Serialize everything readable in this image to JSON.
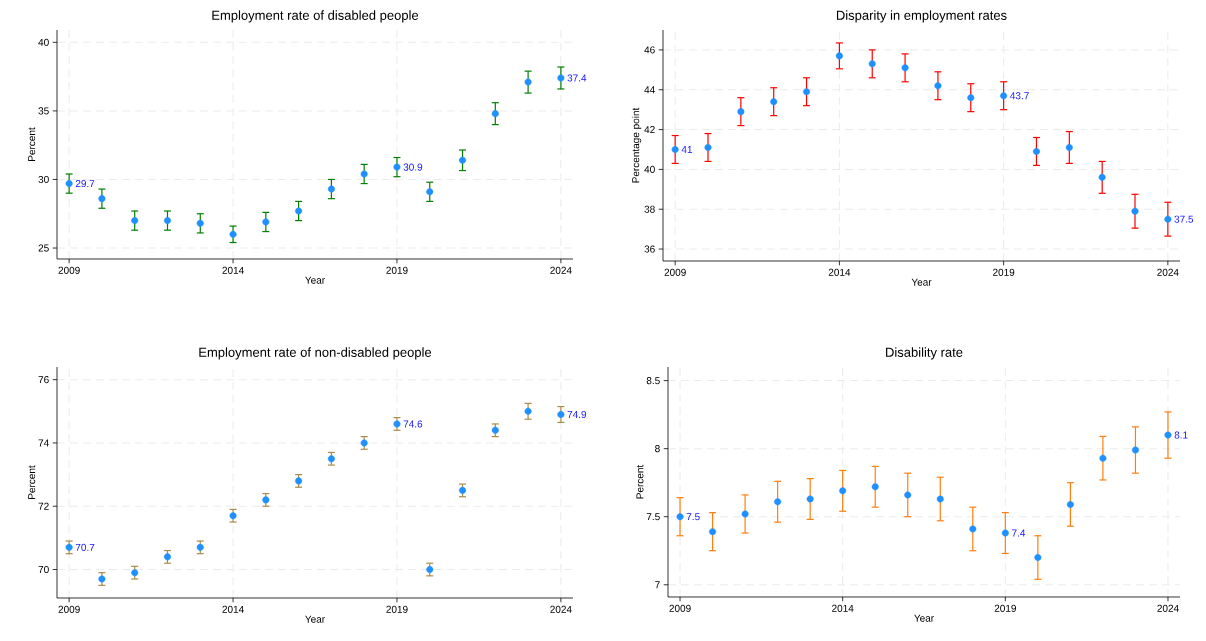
{
  "chart_data": [
    {
      "type": "scatter",
      "title": "Employment rate of disabled people",
      "xlabel": "Year",
      "ylabel": "Percent",
      "x": [
        2009,
        2010,
        2011,
        2012,
        2013,
        2014,
        2015,
        2016,
        2017,
        2018,
        2019,
        2020,
        2021,
        2022,
        2023,
        2024
      ],
      "xlim": [
        2008.63,
        2024.37
      ],
      "xticks": [
        2009,
        2014,
        2019,
        2024
      ],
      "ylim": [
        24.2,
        40.9
      ],
      "yticks": [
        25,
        30,
        35,
        40
      ],
      "grid": true,
      "marker": "circle",
      "series": [
        {
          "color": "#1e90ff",
          "values": [
            29.7,
            28.6,
            27.0,
            27.0,
            26.8,
            26.0,
            26.9,
            27.7,
            29.3,
            30.4,
            30.9,
            29.1,
            31.4,
            34.8,
            37.1,
            37.4
          ],
          "errors": [
            0.7,
            0.7,
            0.7,
            0.7,
            0.7,
            0.6,
            0.7,
            0.7,
            0.7,
            0.7,
            0.7,
            0.7,
            0.75,
            0.8,
            0.8,
            0.8
          ],
          "value_labels": [
            "29.7",
            null,
            null,
            null,
            null,
            null,
            null,
            null,
            null,
            null,
            "30.9",
            null,
            null,
            null,
            null,
            "37.4"
          ]
        }
      ]
    },
    {
      "type": "scatter",
      "title": "Disparity in employment rates",
      "xlabel": "Year",
      "ylabel": "Percentage point",
      "x": [
        2009,
        2010,
        2011,
        2012,
        2013,
        2014,
        2015,
        2016,
        2017,
        2018,
        2019,
        2020,
        2021,
        2022,
        2023,
        2024
      ],
      "xlim": [
        2008.63,
        2024.37
      ],
      "xticks": [
        2009,
        2014,
        2019,
        2024
      ],
      "ylim": [
        35.4,
        47
      ],
      "yticks": [
        36,
        38,
        40,
        42,
        44,
        46
      ],
      "grid": true,
      "marker": "circle",
      "series": [
        {
          "color": "#1e90ff",
          "values": [
            41.0,
            41.1,
            42.9,
            43.4,
            43.9,
            45.7,
            45.3,
            45.1,
            44.2,
            43.6,
            43.7,
            40.9,
            41.1,
            39.6,
            37.9,
            37.5
          ],
          "errors": [
            0.7,
            0.7,
            0.7,
            0.7,
            0.7,
            0.65,
            0.7,
            0.7,
            0.7,
            0.7,
            0.7,
            0.7,
            0.8,
            0.8,
            0.85,
            0.85
          ],
          "value_labels": [
            "41",
            null,
            null,
            null,
            null,
            null,
            null,
            null,
            null,
            null,
            "43.7",
            null,
            null,
            null,
            null,
            "37.5"
          ]
        }
      ]
    },
    {
      "type": "scatter",
      "title": "Employment rate of non-disabled people",
      "xlabel": "Year",
      "ylabel": "Percent",
      "x": [
        2009,
        2010,
        2011,
        2012,
        2013,
        2014,
        2015,
        2016,
        2017,
        2018,
        2019,
        2020,
        2021,
        2022,
        2023,
        2024
      ],
      "xlim": [
        2008.63,
        2024.37
      ],
      "xticks": [
        2009,
        2014,
        2019,
        2024
      ],
      "ylim": [
        69.1,
        76.4
      ],
      "yticks": [
        70,
        72,
        74,
        76
      ],
      "grid": true,
      "marker": "circle",
      "series": [
        {
          "color": "#1e90ff",
          "values": [
            70.7,
            69.7,
            69.9,
            70.4,
            70.7,
            71.7,
            72.2,
            72.8,
            73.5,
            74.0,
            74.6,
            70.0,
            72.5,
            74.4,
            75.0,
            74.9
          ],
          "errors": [
            0.2,
            0.2,
            0.2,
            0.2,
            0.2,
            0.2,
            0.2,
            0.2,
            0.2,
            0.2,
            0.2,
            0.2,
            0.2,
            0.2,
            0.25,
            0.25
          ],
          "value_labels": [
            "70.7",
            null,
            null,
            null,
            null,
            null,
            null,
            null,
            null,
            null,
            "74.6",
            null,
            null,
            null,
            null,
            "74.9"
          ]
        }
      ]
    },
    {
      "type": "scatter",
      "title": "Disability rate",
      "xlabel": "Year",
      "ylabel": "Percent",
      "x": [
        2009,
        2010,
        2011,
        2012,
        2013,
        2014,
        2015,
        2016,
        2017,
        2018,
        2019,
        2020,
        2021,
        2022,
        2023,
        2024
      ],
      "xlim": [
        2008.63,
        2024.37
      ],
      "xticks": [
        2009,
        2014,
        2019,
        2024
      ],
      "ylim": [
        6.91,
        8.6
      ],
      "yticks": [
        7,
        7.5,
        8,
        8.5
      ],
      "grid": true,
      "marker": "circle",
      "series": [
        {
          "color": "#1e90ff",
          "values": [
            7.5,
            7.39,
            7.52,
            7.61,
            7.63,
            7.69,
            7.72,
            7.66,
            7.63,
            7.41,
            7.38,
            7.2,
            7.59,
            7.93,
            7.99,
            8.1
          ],
          "errors": [
            0.14,
            0.14,
            0.14,
            0.15,
            0.15,
            0.15,
            0.15,
            0.16,
            0.16,
            0.16,
            0.15,
            0.16,
            0.16,
            0.16,
            0.17,
            0.17
          ],
          "value_labels": [
            "7.5",
            null,
            null,
            null,
            null,
            null,
            null,
            null,
            null,
            null,
            "7.4",
            null,
            null,
            null,
            null,
            "8.1"
          ]
        }
      ]
    }
  ]
}
